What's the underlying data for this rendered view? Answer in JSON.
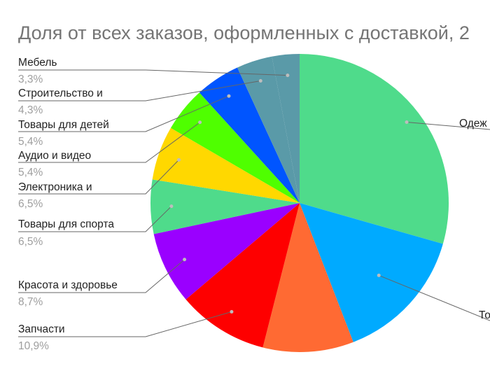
{
  "chart_data": {
    "type": "pie",
    "title": "Доля от всех заказов, оформленных с доставкой, 2",
    "slices": [
      {
        "label": "Одеж",
        "value": 32.6,
        "value_label": "",
        "color": "#4fdb8b"
      },
      {
        "label": "То",
        "value": 16.3,
        "value_label": "",
        "color": "#00aaff"
      },
      {
        "label": "",
        "value": 10.9,
        "value_label": "",
        "color": "#ff6a33"
      },
      {
        "label": "Запчасти",
        "value": 10.9,
        "value_label": "10,9%",
        "color": "#fe0000"
      },
      {
        "label": "Красота и здоровье",
        "value": 8.7,
        "value_label": "8,7%",
        "color": "#9a00ff"
      },
      {
        "label": "Товары для спорта",
        "value": 6.5,
        "value_label": "6,5%",
        "color": "#4fdb8b"
      },
      {
        "label": "Электроника и",
        "value": 6.5,
        "value_label": "6,5%",
        "color": "#ffd800"
      },
      {
        "label": "Аудио и видео",
        "value": 5.4,
        "value_label": "5,4%",
        "color": "#4fff00"
      },
      {
        "label": "Товары для детей",
        "value": 5.4,
        "value_label": "5,4%",
        "color": "#0055ff"
      },
      {
        "label": "Строительство и",
        "value": 4.3,
        "value_label": "4,3%",
        "color": "#5a9aa8"
      },
      {
        "label": "Мебель",
        "value": 3.3,
        "value_label": "3,3%",
        "color": "#5a9aa8"
      }
    ],
    "legend": "none"
  }
}
